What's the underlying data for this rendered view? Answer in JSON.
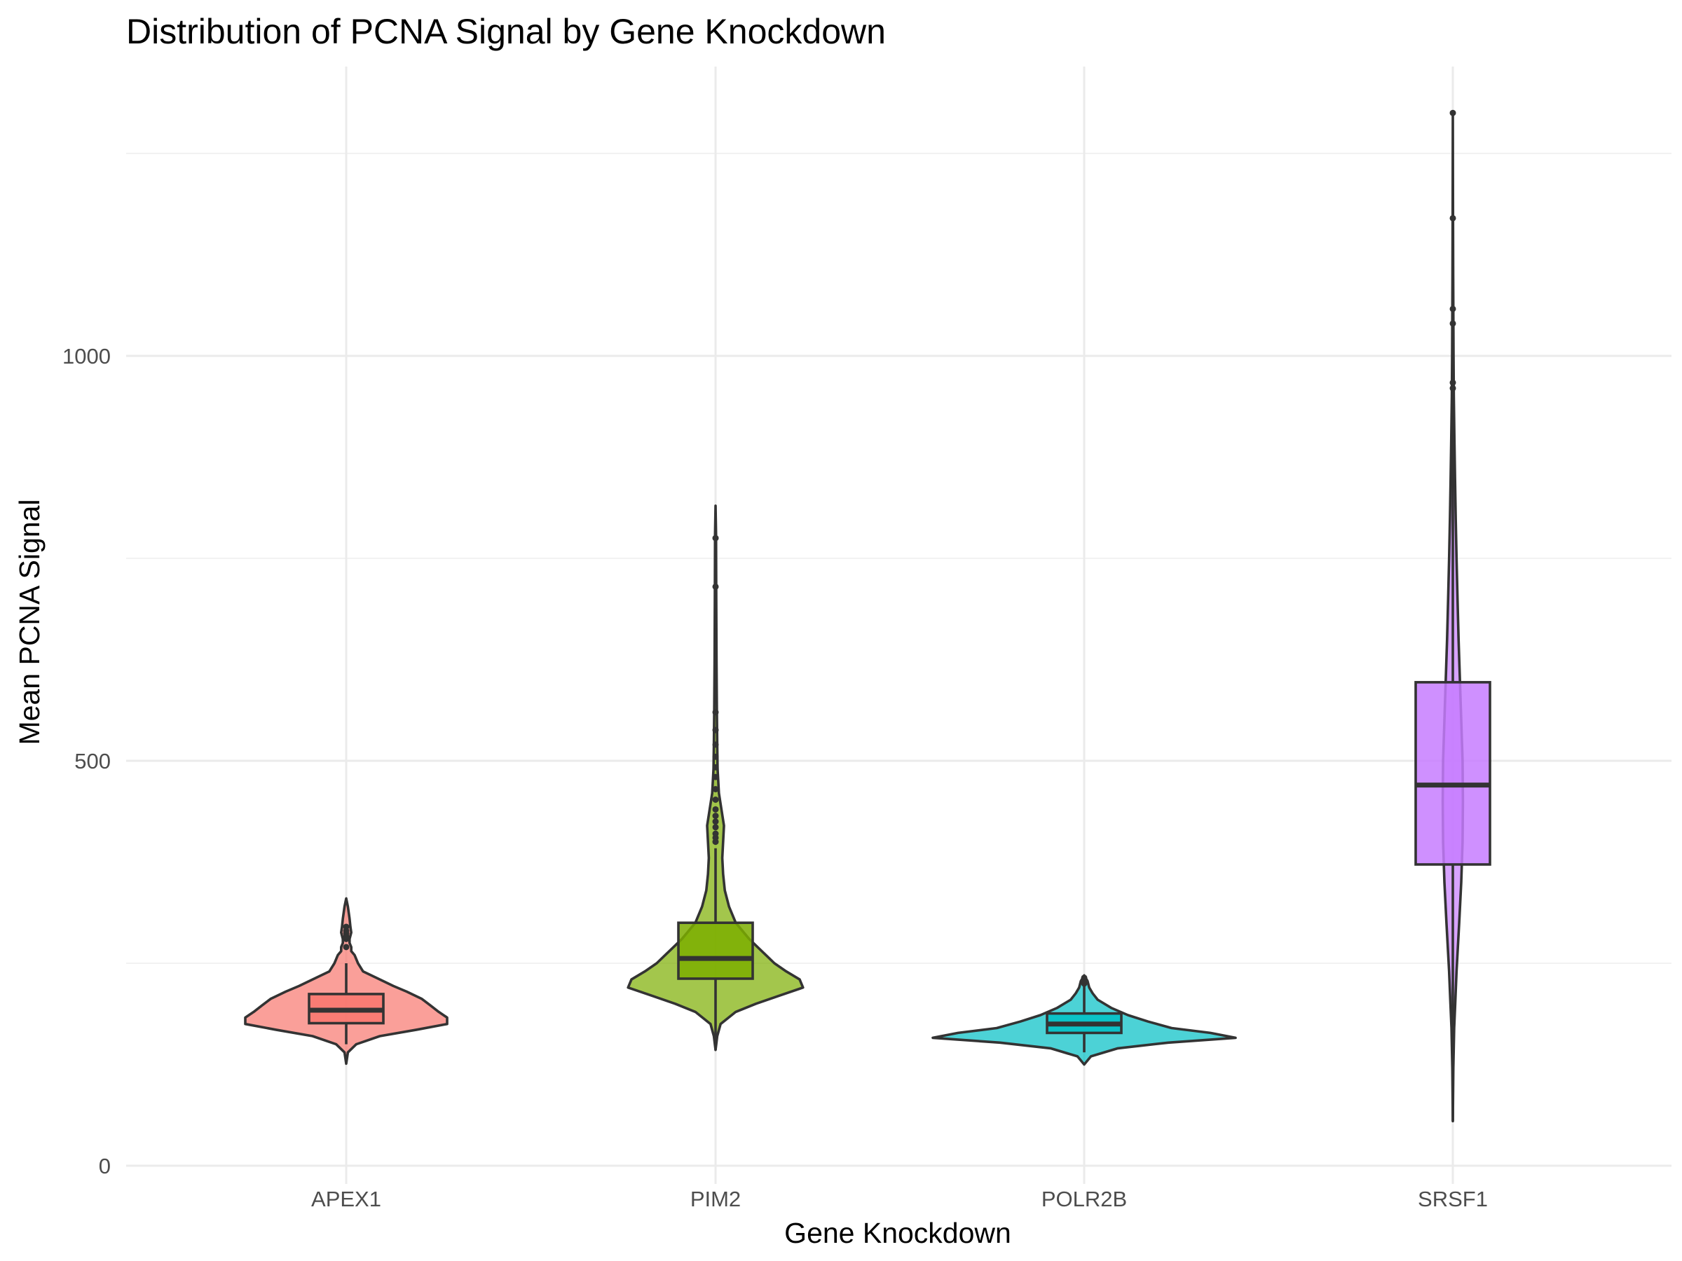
{
  "chart_data": {
    "type": "violin",
    "title": "Distribution of PCNA Signal by Gene Knockdown",
    "xlabel": "Gene Knockdown",
    "ylabel": "Mean PCNA Signal",
    "categories": [
      "APEX1",
      "PIM2",
      "POLR2B",
      "SRSF1"
    ],
    "ylim": [
      0,
      1350
    ],
    "y_ticks": [
      0,
      500,
      1000
    ],
    "y_tick_labels": [
      "0",
      "500",
      "1000"
    ],
    "y_minor_ticks": [
      250,
      750,
      1250
    ],
    "grid": true,
    "legend": "none",
    "colors": {
      "APEX1": "#F8766D",
      "PIM2": "#7CAE00",
      "POLR2B": "#00BFC4",
      "SRSF1": "#C77CFF"
    },
    "violin_fill_opacity": 0.7,
    "violin_density": {
      "APEX1": {
        "y": [
          126,
          140,
          150,
          160,
          168,
          175,
          183,
          190,
          198,
          206,
          215,
          222,
          230,
          240,
          250,
          260,
          265,
          270,
          275,
          280,
          288,
          295,
          305,
          320,
          330
        ],
        "halfwidth": [
          0,
          0.01,
          0.06,
          0.2,
          0.42,
          0.6,
          0.6,
          0.55,
          0.5,
          0.45,
          0.36,
          0.28,
          0.2,
          0.1,
          0.07,
          0.05,
          0.03,
          0.03,
          0.02,
          0.02,
          0.03,
          0.025,
          0.02,
          0.01,
          0
        ]
      },
      "PIM2": {
        "y": [
          143,
          160,
          175,
          190,
          200,
          210,
          220,
          230,
          240,
          250,
          260,
          270,
          280,
          290,
          300,
          320,
          340,
          360,
          380,
          400,
          420,
          440,
          460,
          490,
          520,
          560,
          620,
          700,
          780,
          815
        ],
        "halfwidth": [
          0,
          0.01,
          0.03,
          0.12,
          0.24,
          0.38,
          0.52,
          0.5,
          0.42,
          0.35,
          0.3,
          0.25,
          0.2,
          0.16,
          0.12,
          0.08,
          0.055,
          0.045,
          0.04,
          0.045,
          0.05,
          0.035,
          0.02,
          0.012,
          0.01,
          0.008,
          0.006,
          0.004,
          0.003,
          0
        ]
      },
      "POLR2B": {
        "y": [
          125,
          135,
          145,
          152,
          158,
          164,
          170,
          178,
          186,
          195,
          205,
          213,
          220,
          228,
          235
        ],
        "halfwidth": [
          0,
          0.04,
          0.2,
          0.5,
          0.9,
          0.75,
          0.52,
          0.38,
          0.26,
          0.16,
          0.08,
          0.05,
          0.03,
          0.02,
          0
        ]
      },
      "SRSF1": {
        "y": [
          55,
          120,
          170,
          200,
          240,
          300,
          350,
          400,
          450,
          500,
          550,
          600,
          650,
          700,
          750,
          800,
          850,
          900,
          950,
          1000,
          1100,
          1200,
          1300
        ],
        "halfwidth": [
          0,
          0.003,
          0.008,
          0.014,
          0.022,
          0.038,
          0.05,
          0.058,
          0.06,
          0.058,
          0.05,
          0.042,
          0.034,
          0.028,
          0.022,
          0.017,
          0.013,
          0.009,
          0.006,
          0.004,
          0.002,
          0.001,
          0
        ]
      }
    },
    "boxplots": {
      "APEX1": {
        "q1": 176,
        "median": 192,
        "q3": 212,
        "whisker_low": 150,
        "whisker_high": 250,
        "outliers": [
          270,
          280,
          283,
          287,
          290,
          295
        ]
      },
      "PIM2": {
        "q1": 231,
        "median": 256,
        "q3": 300,
        "whisker_low": 143,
        "whisker_high": 392,
        "outliers": [
          400,
          405,
          410,
          418,
          425,
          432,
          440,
          452,
          465,
          480,
          492,
          505,
          520,
          538,
          560,
          715,
          775
        ]
      },
      "POLR2B": {
        "q1": 164,
        "median": 175,
        "q3": 188,
        "whisker_low": 140,
        "whisker_high": 222,
        "outliers": [
          225,
          229,
          232
        ]
      },
      "SRSF1": {
        "q1": 372,
        "median": 470,
        "q3": 597,
        "whisker_low": 55,
        "whisker_high": 925,
        "outliers": [
          960,
          967,
          1040,
          1058,
          1170,
          1300
        ]
      }
    }
  }
}
